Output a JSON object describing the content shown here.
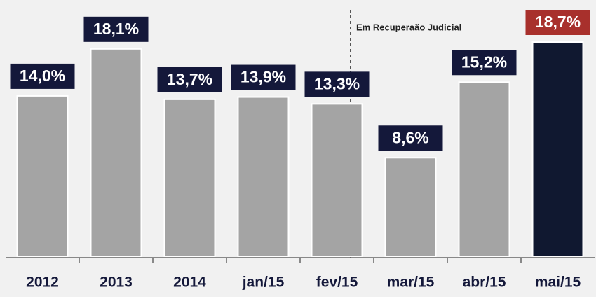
{
  "chart_data": {
    "type": "bar",
    "categories": [
      "2012",
      "2013",
      "2014",
      "jan/15",
      "fev/15",
      "mar/15",
      "abr/15",
      "mai/15"
    ],
    "values": [
      14.0,
      18.1,
      13.7,
      13.9,
      13.3,
      8.6,
      15.2,
      18.7
    ],
    "value_labels": [
      "14,0%",
      "18,1%",
      "13,7%",
      "13,9%",
      "13,3%",
      "8,6%",
      "15,2%",
      "18,7%"
    ],
    "colors": [
      "#a4a4a4",
      "#a4a4a4",
      "#a4a4a4",
      "#a4a4a4",
      "#a4a4a4",
      "#a4a4a4",
      "#a4a4a4",
      "#101830"
    ],
    "label_colors": [
      "#14183a",
      "#14183a",
      "#14183a",
      "#14183a",
      "#14183a",
      "#14183a",
      "#14183a",
      "#a8302c"
    ],
    "annotation": "Em Recuperaão Judicial"
  }
}
